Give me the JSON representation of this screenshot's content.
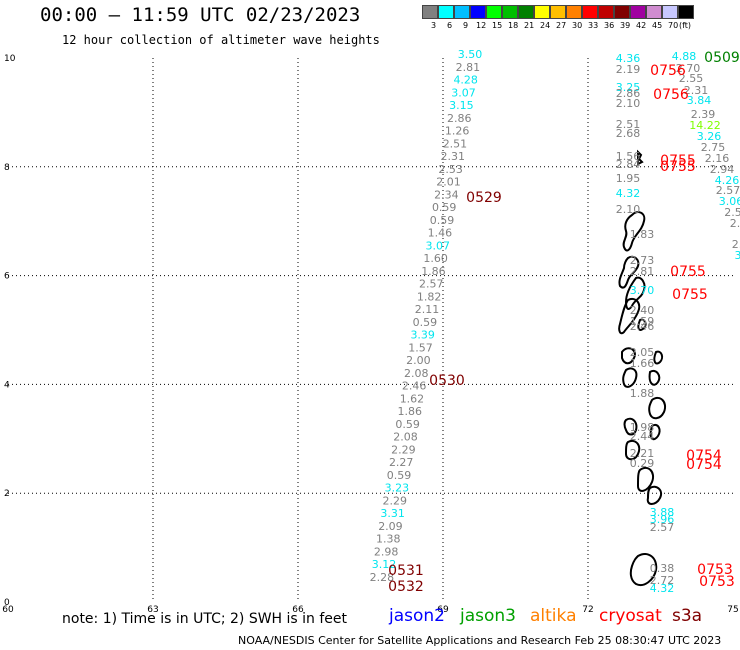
{
  "title": "00:00 – 11:59 UTC 02/23/2023",
  "subtitle": "12 hour collection of altimeter wave heights",
  "legend": {
    "colors": [
      "#808080",
      "#00ffff",
      "#00bfff",
      "#0000ff",
      "#00ff00",
      "#00bf00",
      "#008000",
      "#ffff00",
      "#ffbf00",
      "#ff8000",
      "#ff0000",
      "#bf0000",
      "#800000",
      "#a000a0",
      "#d08cd0",
      "#c8c8ff",
      "#000000"
    ],
    "labels": [
      "3",
      "6",
      "9",
      "12",
      "15",
      "18",
      "21",
      "24",
      "27",
      "30",
      "33",
      "36",
      "39",
      "42",
      "45",
      "70",
      "(ft)"
    ]
  },
  "axes": {
    "x_ticks": [
      "60",
      "63",
      "66",
      "69",
      "72",
      "75"
    ],
    "y_ticks": [
      "0",
      "2",
      "4",
      "6",
      "8",
      "10"
    ]
  },
  "tracks": [
    {
      "sat": "jason2",
      "color": "#00ffff",
      "values": [
        "3.50"
      ]
    },
    {
      "sat": "obs",
      "color": "#808080",
      "values": [
        "2.81"
      ]
    },
    {
      "sat": "obs",
      "color": "#00ffff",
      "values": [
        "4.28",
        "3.07",
        "3.15"
      ]
    },
    {
      "sat": "obs",
      "color": "#808080",
      "values": [
        "2.86",
        "1.26",
        "2.51",
        "2.31",
        "2.53",
        "2.01",
        "2.34",
        "0.59",
        "0.59",
        "1.46"
      ]
    },
    {
      "sat": "obs",
      "color": "#00ffff",
      "values": [
        "3.07"
      ]
    },
    {
      "sat": "obs",
      "color": "#808080",
      "values": [
        "1.60",
        "1.86",
        "2.57",
        "1.82",
        "2.11",
        "0.59"
      ]
    },
    {
      "sat": "obs",
      "color": "#00ffff",
      "values": [
        "3.39"
      ]
    },
    {
      "sat": "obs",
      "color": "#808080",
      "values": [
        "1.57",
        "2.00",
        "2.08",
        "2.46",
        "1.62",
        "1.86",
        "0.59",
        "2.08",
        "2.29",
        "2.27",
        "0.59"
      ]
    },
    {
      "sat": "obs",
      "color": "#00ffff",
      "values": [
        "3.23"
      ]
    },
    {
      "sat": "obs",
      "color": "#808080",
      "values": [
        "2.29"
      ]
    },
    {
      "sat": "obs",
      "color": "#00ffff",
      "values": [
        "3.31"
      ]
    },
    {
      "sat": "obs",
      "color": "#808080",
      "values": [
        "2.09",
        "1.38",
        "2.98"
      ]
    },
    {
      "sat": "obs",
      "color": "#00ffff",
      "values": [
        "3.12"
      ]
    },
    {
      "sat": "obs",
      "color": "#808080",
      "values": [
        "2.28"
      ]
    }
  ],
  "labels_left_track": [
    {
      "text": "3.50",
      "color": "#00e5ee"
    },
    {
      "text": "2.81",
      "color": "#808080"
    },
    {
      "text": "4.28",
      "color": "#00e5ee"
    },
    {
      "text": "3.07",
      "color": "#00e5ee"
    },
    {
      "text": "3.15",
      "color": "#00e5ee"
    },
    {
      "text": "2.86",
      "color": "#808080"
    },
    {
      "text": "1.26",
      "color": "#808080"
    },
    {
      "text": "2.51",
      "color": "#808080"
    },
    {
      "text": "2.31",
      "color": "#808080"
    },
    {
      "text": "2.53",
      "color": "#808080"
    },
    {
      "text": "2.01",
      "color": "#808080"
    },
    {
      "text": "2.34",
      "color": "#808080"
    },
    {
      "text": "0.59",
      "color": "#808080"
    },
    {
      "text": "0.59",
      "color": "#808080"
    },
    {
      "text": "1.46",
      "color": "#808080"
    },
    {
      "text": "3.07",
      "color": "#00e5ee"
    },
    {
      "text": "1.60",
      "color": "#808080"
    },
    {
      "text": "1.86",
      "color": "#808080"
    },
    {
      "text": "2.57",
      "color": "#808080"
    },
    {
      "text": "1.82",
      "color": "#808080"
    },
    {
      "text": "2.11",
      "color": "#808080"
    },
    {
      "text": "0.59",
      "color": "#808080"
    },
    {
      "text": "3.39",
      "color": "#00e5ee"
    },
    {
      "text": "1.57",
      "color": "#808080"
    },
    {
      "text": "2.00",
      "color": "#808080"
    },
    {
      "text": "2.08",
      "color": "#808080"
    },
    {
      "text": "2.46",
      "color": "#808080"
    },
    {
      "text": "1.62",
      "color": "#808080"
    },
    {
      "text": "1.86",
      "color": "#808080"
    },
    {
      "text": "0.59",
      "color": "#808080"
    },
    {
      "text": "2.08",
      "color": "#808080"
    },
    {
      "text": "2.29",
      "color": "#808080"
    },
    {
      "text": "2.27",
      "color": "#808080"
    },
    {
      "text": "0.59",
      "color": "#808080"
    },
    {
      "text": "3.23",
      "color": "#00e5ee"
    },
    {
      "text": "2.29",
      "color": "#808080"
    },
    {
      "text": "3.31",
      "color": "#00e5ee"
    },
    {
      "text": "2.09",
      "color": "#808080"
    },
    {
      "text": "1.38",
      "color": "#808080"
    },
    {
      "text": "2.98",
      "color": "#808080"
    },
    {
      "text": "3.12",
      "color": "#00e5ee"
    },
    {
      "text": "2.28",
      "color": "#808080"
    }
  ],
  "time_labels": [
    {
      "text": "0529",
      "color": "#800000"
    },
    {
      "text": "0530",
      "color": "#800000"
    },
    {
      "text": "0531",
      "color": "#800000"
    },
    {
      "text": "0532",
      "color": "#800000"
    },
    {
      "text": "0509",
      "color": "#008000"
    },
    {
      "text": "0756",
      "color": "#ff0000"
    },
    {
      "text": "0756",
      "color": "#ff0000"
    },
    {
      "text": "0755",
      "color": "#ff0000"
    },
    {
      "text": "0755",
      "color": "#ff0000"
    },
    {
      "text": "0755",
      "color": "#ff0000"
    },
    {
      "text": "0755",
      "color": "#ff0000"
    },
    {
      "text": "0754",
      "color": "#ff0000"
    },
    {
      "text": "0754",
      "color": "#ff0000"
    },
    {
      "text": "0753",
      "color": "#ff0000"
    },
    {
      "text": "0753",
      "color": "#ff0000"
    }
  ],
  "labels_right_track": [
    {
      "text": "4.36",
      "color": "#00e5ee"
    },
    {
      "text": "2.19",
      "color": "#808080"
    },
    {
      "text": "3.25",
      "color": "#00e5ee"
    },
    {
      "text": "2.86",
      "color": "#808080"
    },
    {
      "text": "2.10",
      "color": "#808080"
    },
    {
      "text": "2.51",
      "color": "#808080"
    },
    {
      "text": "2.68",
      "color": "#808080"
    },
    {
      "text": "1.56",
      "color": "#808080"
    },
    {
      "text": "2.84",
      "color": "#808080"
    },
    {
      "text": "1.95",
      "color": "#808080"
    },
    {
      "text": "4.32",
      "color": "#00e5ee"
    },
    {
      "text": "2.10",
      "color": "#808080"
    },
    {
      "text": "1.83",
      "color": "#808080"
    },
    {
      "text": "2.73",
      "color": "#808080"
    },
    {
      "text": "2.81",
      "color": "#808080"
    },
    {
      "text": "3.70",
      "color": "#00e5ee"
    },
    {
      "text": "2.40",
      "color": "#808080"
    },
    {
      "text": "1.59",
      "color": "#808080"
    },
    {
      "text": "2.46",
      "color": "#808080"
    },
    {
      "text": "2.05",
      "color": "#808080"
    },
    {
      "text": "1.66",
      "color": "#808080"
    },
    {
      "text": "1.88",
      "color": "#808080"
    },
    {
      "text": "1.98",
      "color": "#808080"
    },
    {
      "text": "2.44",
      "color": "#808080"
    },
    {
      "text": "2.21",
      "color": "#808080"
    },
    {
      "text": "0.29",
      "color": "#808080"
    },
    {
      "text": "3.88",
      "color": "#00e5ee"
    },
    {
      "text": "3.96",
      "color": "#00e5ee"
    },
    {
      "text": "2.57",
      "color": "#808080"
    },
    {
      "text": "0.38",
      "color": "#808080"
    },
    {
      "text": "2.72",
      "color": "#808080"
    },
    {
      "text": "4.32",
      "color": "#00e5ee"
    }
  ],
  "labels_far_right": [
    {
      "text": "4.88",
      "color": "#00e5ee"
    },
    {
      "text": "2.70",
      "color": "#808080"
    },
    {
      "text": "2.55",
      "color": "#808080"
    },
    {
      "text": "2.31",
      "color": "#808080"
    },
    {
      "text": "3.84",
      "color": "#00e5ee"
    },
    {
      "text": "2.39",
      "color": "#808080"
    },
    {
      "text": "14.22",
      "color": "#7fff00"
    },
    {
      "text": "3.26",
      "color": "#00e5ee"
    },
    {
      "text": "2.75",
      "color": "#808080"
    },
    {
      "text": "2.16",
      "color": "#808080"
    },
    {
      "text": "2.94",
      "color": "#808080"
    },
    {
      "text": "4.26",
      "color": "#00e5ee"
    },
    {
      "text": "2.57",
      "color": "#808080"
    },
    {
      "text": "3.06",
      "color": "#00e5ee"
    },
    {
      "text": "2.5",
      "color": "#808080"
    },
    {
      "text": "2.",
      "color": "#808080"
    },
    {
      "text": "2.",
      "color": "#808080"
    },
    {
      "text": "3",
      "color": "#00e5ee"
    }
  ],
  "footer": {
    "note": "note: 1) Time is in UTC; 2) SWH is in feet",
    "satellites": [
      {
        "name": "jason2",
        "color": "#0000ff"
      },
      {
        "name": "jason3",
        "color": "#00a000"
      },
      {
        "name": "altika",
        "color": "#ff8000"
      },
      {
        "name": "cryosat",
        "color": "#ff0000"
      },
      {
        "name": "s3a",
        "color": "#800000"
      }
    ],
    "credit": "NOAA/NESDIS Center for Satellite Applications and Research    Feb 25 08:30:47 UTC 2023"
  }
}
